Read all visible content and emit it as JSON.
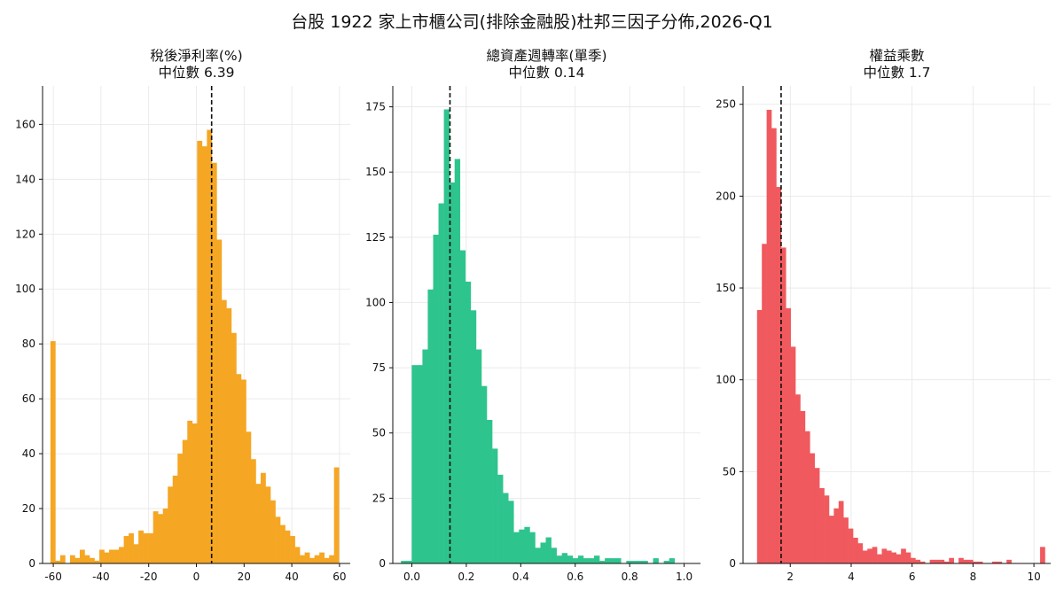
{
  "figure": {
    "title": "台股 1922 家上市櫃公司(排除金融股)杜邦三因子分佈,2026-Q1"
  },
  "chart_data": [
    {
      "type": "bar",
      "title": "稅後淨利率(%)",
      "subtitle": "中位數 6.39",
      "median": 6.39,
      "color": "#f5a623",
      "xlim": [
        -64.5,
        64.5
      ],
      "ylim": [
        0,
        174
      ],
      "xticks": [
        -60,
        -40,
        -20,
        0,
        20,
        40,
        60
      ],
      "yticks": [
        0,
        20,
        40,
        60,
        80,
        100,
        120,
        140,
        160
      ],
      "bin_start": -61.2,
      "bin_width": 2.05,
      "counts": [
        81,
        1,
        3,
        0,
        3,
        2,
        5,
        3,
        2,
        1,
        5,
        4,
        5,
        5,
        6,
        10,
        11,
        7,
        12,
        11,
        11,
        19,
        18,
        20,
        28,
        32,
        40,
        45,
        52,
        51,
        154,
        152,
        158,
        146,
        118,
        96,
        93,
        84,
        69,
        67,
        48,
        38,
        29,
        33,
        28,
        23,
        17,
        14,
        12,
        10,
        6,
        3,
        4,
        2,
        3,
        4,
        2,
        3,
        35
      ]
    },
    {
      "type": "bar",
      "title": "總資產週轉率(單季)",
      "subtitle": "中位數 0.14",
      "median": 0.14,
      "color": "#2ec48e",
      "xlim": [
        -0.07,
        1.06
      ],
      "ylim": [
        0,
        183
      ],
      "xticks": [
        0.0,
        0.2,
        0.4,
        0.6,
        0.8,
        1.0
      ],
      "xtick_labels": [
        "0.0",
        "0.2",
        "0.4",
        "0.6",
        "0.8",
        "1.0"
      ],
      "yticks": [
        0,
        25,
        50,
        75,
        100,
        125,
        150,
        175
      ],
      "bin_start": -0.04,
      "bin_width": 0.0197,
      "counts": [
        1,
        1,
        76,
        76,
        82,
        105,
        126,
        138,
        174,
        146,
        155,
        120,
        108,
        97,
        82,
        68,
        55,
        44,
        34,
        27,
        24,
        12,
        13,
        14,
        12,
        6,
        8,
        10,
        6,
        3,
        4,
        3,
        2,
        3,
        2,
        2,
        3,
        1,
        2,
        2,
        2,
        0,
        1,
        1,
        1,
        1,
        0,
        2,
        0,
        1,
        2
      ]
    },
    {
      "type": "bar",
      "title": "權益乘數",
      "subtitle": "中位數 1.7",
      "median": 1.7,
      "color": "#f0595e",
      "xlim": [
        0.45,
        10.55
      ],
      "ylim": [
        0,
        260
      ],
      "xticks": [
        2,
        4,
        6,
        8,
        10
      ],
      "yticks": [
        0,
        50,
        100,
        150,
        200,
        250
      ],
      "bin_start": 0.91,
      "bin_width": 0.1575,
      "counts": [
        138,
        174,
        247,
        237,
        205,
        172,
        139,
        118,
        92,
        83,
        72,
        60,
        52,
        41,
        37,
        26,
        30,
        34,
        25,
        19,
        14,
        11,
        7,
        8,
        9,
        5,
        8,
        7,
        6,
        5,
        8,
        6,
        3,
        2,
        1,
        0,
        2,
        2,
        2,
        1,
        3,
        0,
        3,
        2,
        2,
        1,
        1,
        0,
        0,
        1,
        1,
        0,
        2,
        0,
        0,
        0,
        0,
        0,
        0,
        9
      ]
    }
  ]
}
